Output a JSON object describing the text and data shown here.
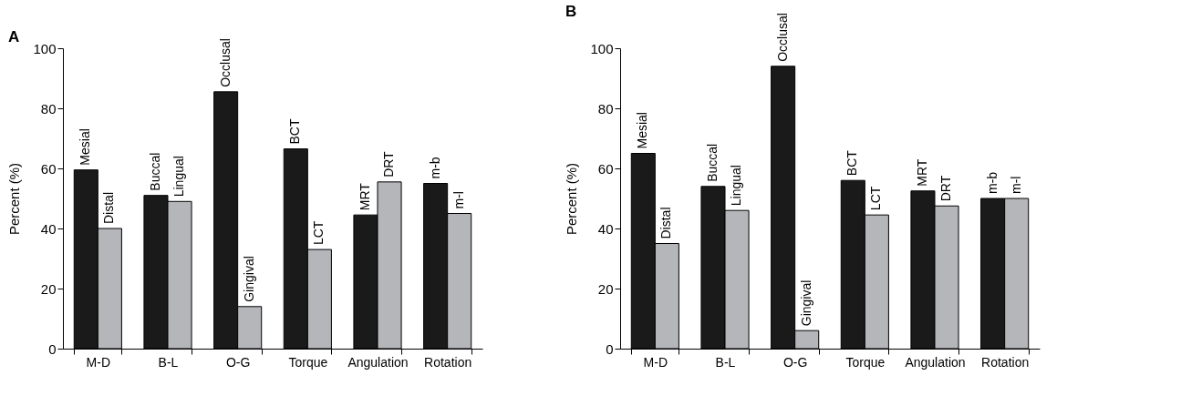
{
  "chart_data": [
    {
      "type": "bar",
      "title": "A",
      "ylabel": "Percent (%)",
      "categories": [
        "M-D",
        "B-L",
        "O-G",
        "Torque",
        "Angulation",
        "Rotation"
      ],
      "ylim": [
        0,
        100
      ],
      "yticks": [
        0,
        20,
        40,
        60,
        80,
        100
      ],
      "series": [
        {
          "color": "#1a1a1a",
          "values": [
            59.5,
            51,
            85.5,
            66.5,
            44.5,
            55
          ],
          "value_labels": [
            "Mesial",
            "Buccal",
            "Occlusal",
            "BCT",
            "MRT",
            "m-b"
          ]
        },
        {
          "color": "#b4b6b9",
          "values": [
            40,
            49,
            14,
            33,
            55.5,
            45
          ],
          "value_labels": [
            "Distal",
            "Lingual",
            "Gingival",
            "LCT",
            "DRT",
            "m-l"
          ]
        }
      ]
    },
    {
      "type": "bar",
      "title": "B",
      "ylabel": "Percent (%)",
      "categories": [
        "M-D",
        "B-L",
        "O-G",
        "Torque",
        "Angulation",
        "Rotation"
      ],
      "ylim": [
        0,
        100
      ],
      "yticks": [
        0,
        20,
        40,
        60,
        80,
        100
      ],
      "series": [
        {
          "color": "#1a1a1a",
          "values": [
            65,
            54,
            94,
            56,
            52.5,
            50
          ],
          "value_labels": [
            "Mesial",
            "Buccal",
            "Occlusal",
            "BCT",
            "MRT",
            "m-b"
          ]
        },
        {
          "color": "#b4b6b9",
          "values": [
            35,
            46,
            6,
            44.5,
            47.5,
            50
          ],
          "value_labels": [
            "Distal",
            "Lingual",
            "Gingival",
            "LCT",
            "DRT",
            "m-l"
          ]
        }
      ]
    }
  ]
}
